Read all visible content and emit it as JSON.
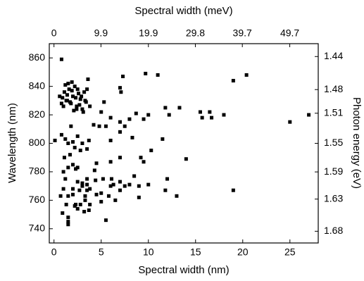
{
  "chart_data": {
    "type": "scatter",
    "title": "Spectral width (meV)",
    "xlabel": "Spectral width (nm)",
    "ylabel": "Wavelength (nm)",
    "y2label": "Photon energy (eV)",
    "color": "#000000",
    "xlim": [
      -0.5,
      28
    ],
    "xticks": [
      0,
      5,
      10,
      15,
      20,
      25
    ],
    "x2lim": [
      -0.99,
      55.7
    ],
    "x2ticks": [
      0,
      9.9,
      19.9,
      29.8,
      39.7,
      49.7
    ],
    "ylim": [
      730,
      870
    ],
    "yticks": [
      740,
      760,
      780,
      800,
      820,
      840,
      860
    ],
    "y2lim": [
      1.699,
      1.425
    ],
    "y2scale": "reciprocal",
    "y2ticks": [
      1.68,
      1.63,
      1.59,
      1.55,
      1.51,
      1.48,
      1.44
    ],
    "x": [
      27,
      25,
      20.4,
      19,
      19,
      18,
      16.7,
      16.5,
      15.7,
      15.5,
      14,
      13.3,
      13,
      12.2,
      11.8,
      12,
      11.8,
      11.5,
      11,
      10.3,
      10,
      10,
      9.7,
      9.5,
      9.2,
      9.5,
      9,
      9,
      8.7,
      8.5,
      8.3,
      8,
      8,
      7.5,
      7.5,
      7.3,
      7.1,
      7,
      7,
      7,
      7,
      7,
      7,
      6.5,
      6.3,
      6.1,
      6,
      6,
      6,
      6,
      5.8,
      5.5,
      5.5,
      5.3,
      5.2,
      5,
      5,
      5,
      4.8,
      4.5,
      4.3,
      4.4,
      4.5,
      4.2,
      3.8,
      3.7,
      3.5,
      3.3,
      3.2,
      3.5,
      0.8,
      0.1,
      0.8,
      0.7,
      0.9,
      1,
      1.2,
      1.5,
      1.5,
      1.5,
      1.3,
      1,
      1.1,
      1.2,
      1.5,
      2,
      1.7,
      2,
      2.3,
      2.5,
      1.5,
      2,
      2.3,
      2.5,
      2.2,
      2.8,
      3,
      3,
      2.7,
      2,
      1.5,
      2.5,
      3.5,
      3.8,
      3.7,
      3.3,
      3.8,
      3.5,
      2.8,
      3,
      2.2,
      1.8,
      2.5,
      0.9,
      1.1,
      1.3,
      1.5,
      1.6,
      1.8,
      2,
      2.2,
      2.4,
      2.6,
      2.8,
      3,
      3.2,
      3.4,
      3.6,
      1,
      1.2,
      1.4,
      1.7,
      1.9,
      2.1,
      2.3,
      2.5,
      2.7,
      2.9,
      3.1,
      3.3,
      0.8,
      1.4,
      1.9,
      2.4,
      3.5,
      0.6
    ],
    "values": [
      820,
      815,
      848,
      844,
      767,
      820,
      818,
      822,
      818,
      822,
      789,
      825,
      763,
      820,
      825,
      775,
      767,
      803,
      848,
      795,
      820,
      771,
      849,
      787,
      790,
      817,
      762,
      770,
      821,
      777,
      804,
      771,
      817,
      770,
      812,
      847,
      836,
      839,
      815,
      808,
      790,
      773,
      767,
      760,
      771,
      775,
      818,
      802,
      787,
      770,
      763,
      812,
      746,
      829,
      775,
      822,
      765,
      759,
      812,
      786,
      781,
      774,
      764,
      813,
      826,
      802,
      775,
      760,
      752,
      796,
      859,
      802,
      806,
      763,
      751,
      780,
      775,
      743,
      745,
      748,
      757,
      768,
      790,
      803,
      800,
      801,
      792,
      785,
      782,
      783,
      783,
      768,
      757,
      754,
      756,
      757,
      772,
      770,
      767,
      764,
      763,
      773,
      767,
      757,
      753,
      763,
      768,
      771,
      795,
      800,
      797,
      812,
      805,
      832,
      836,
      830,
      842,
      838,
      828,
      833,
      840,
      826,
      835,
      831,
      824,
      836,
      829,
      845,
      826,
      841,
      834,
      829,
      837,
      823,
      832,
      838,
      827,
      833,
      822,
      830,
      828,
      830,
      843,
      824,
      838,
      833
    ]
  }
}
